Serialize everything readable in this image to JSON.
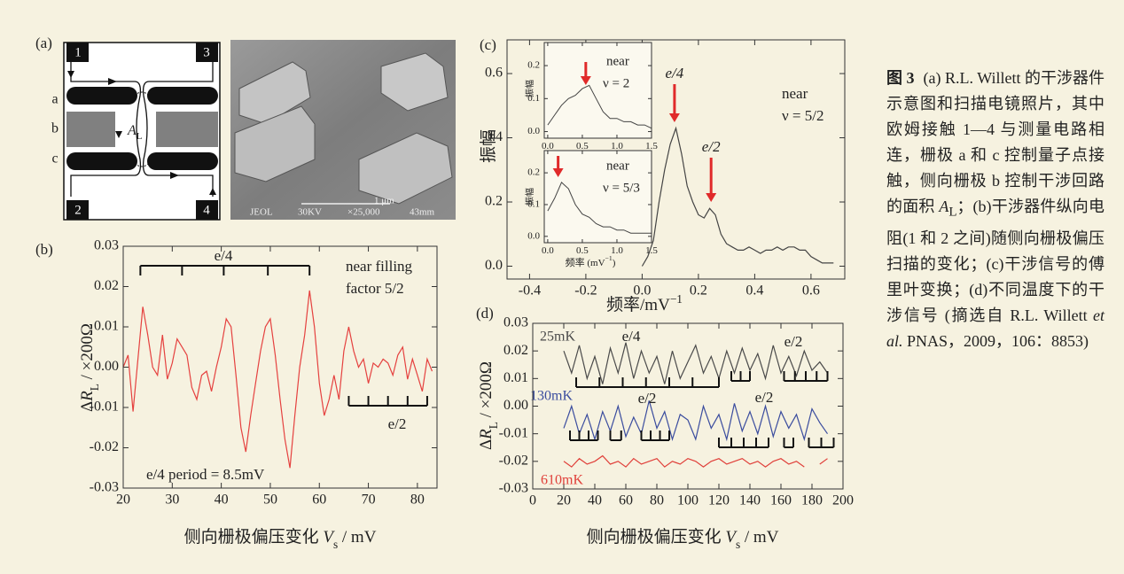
{
  "diagram": {
    "panel_label": "(a)",
    "terminals": [
      "1",
      "2",
      "3",
      "4"
    ],
    "gates": [
      "a",
      "b",
      "c"
    ],
    "area_label": {
      "A": "A",
      "sub": "L"
    },
    "photo_texts": [
      "JEOL",
      "30KV",
      "×25,000",
      "43mm",
      "1 μm"
    ]
  },
  "chart_data": [
    {
      "type": "line",
      "panel_label": "(b)",
      "x_label": [
        {
          "text": "侧向栅极偏压变化 "
        },
        {
          "text": "V",
          "style": "italic"
        },
        {
          "text": "s",
          "style": "sub"
        },
        {
          "text": " / mV"
        }
      ],
      "y_label": [
        {
          "text": "Δ"
        },
        {
          "text": "R",
          "style": "italic"
        },
        {
          "text": "L",
          "style": "sub"
        },
        {
          "text": " / ×200Ω"
        }
      ],
      "xlim": [
        20,
        84
      ],
      "xticks": [
        20,
        30,
        40,
        50,
        60,
        70,
        80
      ],
      "ylim": [
        -0.03,
        0.03
      ],
      "yticks": [
        -0.03,
        -0.02,
        -0.01,
        {
          "value": 0,
          "label": "0.00"
        },
        0.01,
        0.02,
        0.03
      ],
      "series": [
        {
          "color": "#e5413f",
          "x": [
            20,
            21,
            22,
            23,
            24,
            25,
            26,
            27,
            28,
            29,
            30,
            31,
            32,
            33,
            34,
            35,
            36,
            37,
            38,
            39,
            40,
            41,
            42,
            43,
            44,
            45,
            46,
            47,
            48,
            49,
            50,
            51,
            52,
            53,
            54,
            55,
            56,
            57,
            58,
            59,
            60,
            61,
            62,
            63,
            64,
            65,
            66,
            67,
            68,
            69,
            70,
            71,
            72,
            73,
            74,
            75,
            76,
            77,
            78,
            79,
            80,
            81,
            82,
            83
          ],
          "values": [
            0.0,
            0.003,
            -0.011,
            0.002,
            0.015,
            0.008,
            0.0,
            -0.002,
            0.008,
            -0.003,
            0.001,
            0.007,
            0.005,
            0.003,
            -0.005,
            -0.008,
            -0.002,
            -0.001,
            -0.006,
            0.0,
            0.005,
            0.012,
            0.01,
            -0.002,
            -0.015,
            -0.021,
            -0.012,
            -0.004,
            0.004,
            0.01,
            0.012,
            0.003,
            -0.008,
            -0.018,
            -0.025,
            -0.012,
            0.0,
            0.008,
            0.019,
            0.01,
            -0.004,
            -0.012,
            -0.008,
            -0.002,
            -0.008,
            0.004,
            0.01,
            0.004,
            0.0,
            0.002,
            -0.004,
            0.001,
            0.0,
            0.002,
            0.001,
            -0.002,
            0.003,
            0.005,
            -0.003,
            0.002,
            -0.002,
            -0.006,
            0.002,
            -0.001
          ]
        }
      ],
      "annotations": [
        "near filling",
        "factor 5/2",
        "e/4 period = 8.5mV",
        "e/4",
        "e/2"
      ],
      "brackets": [
        {
          "x": [
            23.5,
            32,
            40.5,
            49.5,
            58
          ]
        },
        {
          "x": [
            66,
            70,
            74,
            78,
            82
          ]
        }
      ]
    },
    {
      "type": "line",
      "panel_label": "(c)",
      "x_label": [
        {
          "text": "频率/mV"
        },
        {
          "text": "−1",
          "style": "sup"
        }
      ],
      "y_label": [
        {
          "text": "振幅"
        }
      ],
      "xlim": [
        -0.48,
        0.72
      ],
      "xticks": [
        -0.4,
        -0.2,
        {
          "value": 0,
          "label": "0.0"
        },
        0.2,
        0.4,
        0.6
      ],
      "ylim": [
        -0.04,
        0.705
      ],
      "yticks": [
        {
          "value": 0,
          "label": "0.0"
        },
        0.2,
        0.4,
        0.6
      ],
      "series": [
        {
          "color": "#444444",
          "x": [
            0.0,
            0.02,
            0.04,
            0.06,
            0.08,
            0.1,
            0.12,
            0.14,
            0.16,
            0.18,
            0.2,
            0.22,
            0.24,
            0.26,
            0.28,
            0.3,
            0.32,
            0.34,
            0.36,
            0.38,
            0.4,
            0.42,
            0.44,
            0.46,
            0.48,
            0.5,
            0.52,
            0.54,
            0.56,
            0.58,
            0.6,
            0.62,
            0.64,
            0.66,
            0.68
          ],
          "values": [
            0.0,
            0.03,
            0.08,
            0.2,
            0.3,
            0.38,
            0.43,
            0.35,
            0.25,
            0.2,
            0.16,
            0.15,
            0.18,
            0.16,
            0.1,
            0.07,
            0.06,
            0.05,
            0.05,
            0.06,
            0.05,
            0.04,
            0.05,
            0.05,
            0.06,
            0.05,
            0.06,
            0.06,
            0.05,
            0.05,
            0.03,
            0.02,
            0.01,
            0.01,
            0.01
          ]
        }
      ],
      "annotations": [
        "near",
        "ν = 5/2"
      ],
      "arrows": [
        {
          "label": "e/4",
          "x": 0.115
        },
        {
          "label": "e/2",
          "x": 0.245
        }
      ]
    },
    {
      "type": "line",
      "y_label": [
        {
          "text": "振幅"
        }
      ],
      "xlim": [
        -0.05,
        1.5
      ],
      "xticks": [
        {
          "value": 0,
          "label": "0.0"
        },
        0.5,
        {
          "value": 1,
          "label": "1.0"
        },
        1.5
      ],
      "ylim": [
        -0.02,
        0.27
      ],
      "yticks": [
        {
          "value": 0,
          "label": "0.0"
        },
        0.1,
        0.2
      ],
      "series": [
        {
          "color": "#444444",
          "x": [
            0.0,
            0.1,
            0.2,
            0.3,
            0.4,
            0.5,
            0.6,
            0.7,
            0.8,
            0.9,
            1.0,
            1.1,
            1.2,
            1.3,
            1.4,
            1.5
          ],
          "values": [
            0.02,
            0.05,
            0.08,
            0.1,
            0.11,
            0.13,
            0.14,
            0.1,
            0.06,
            0.04,
            0.04,
            0.03,
            0.03,
            0.02,
            0.02,
            0.01
          ]
        }
      ],
      "annotations": [
        "near",
        "ν = 2"
      ],
      "arrows": [
        {
          "x": 0.55
        }
      ]
    },
    {
      "type": "line",
      "x_label": [
        {
          "text": "频率 (mV"
        },
        {
          "text": "−1",
          "style": "sup"
        },
        {
          "text": ")"
        }
      ],
      "y_label": [
        {
          "text": "振幅"
        }
      ],
      "xlim": [
        -0.05,
        1.5
      ],
      "xticks": [
        {
          "value": 0,
          "label": "0.0"
        },
        0.5,
        {
          "value": 1,
          "label": "1.0"
        },
        1.5
      ],
      "ylim": [
        -0.02,
        0.27
      ],
      "yticks": [
        {
          "value": 0,
          "label": "0.0"
        },
        0.1,
        0.2
      ],
      "series": [
        {
          "color": "#444444",
          "x": [
            0.0,
            0.1,
            0.2,
            0.3,
            0.4,
            0.5,
            0.6,
            0.7,
            0.8,
            0.9,
            1.0,
            1.1,
            1.2,
            1.3,
            1.4,
            1.5
          ],
          "values": [
            0.08,
            0.12,
            0.17,
            0.15,
            0.1,
            0.07,
            0.06,
            0.04,
            0.03,
            0.03,
            0.02,
            0.02,
            0.01,
            0.01,
            0.01,
            0.01
          ]
        }
      ],
      "annotations": [
        "near",
        "ν = 5/3"
      ],
      "arrows": [
        {
          "x": 0.15
        }
      ]
    },
    {
      "type": "line",
      "panel_label": "(d)",
      "x_label": [
        {
          "text": "侧向栅极偏压变化 "
        },
        {
          "text": "V",
          "style": "italic"
        },
        {
          "text": "s",
          "style": "sub"
        },
        {
          "text": " / mV"
        }
      ],
      "y_label": [
        {
          "text": "Δ"
        },
        {
          "text": "R",
          "style": "italic"
        },
        {
          "text": "L",
          "style": "sub"
        },
        {
          "text": " / ×200Ω"
        }
      ],
      "xlim": [
        0,
        200
      ],
      "xticks": [
        0,
        20,
        40,
        60,
        80,
        100,
        120,
        140,
        160,
        180,
        200
      ],
      "ylim": [
        -0.03,
        0.03
      ],
      "yticks": [
        -0.03,
        -0.02,
        -0.01,
        {
          "value": 0,
          "label": "0.00"
        },
        0.01,
        0.02,
        0.03
      ],
      "series": [
        {
          "name": "25mK",
          "color": "#4a4a4a",
          "x": [
            20,
            25,
            30,
            35,
            40,
            45,
            50,
            55,
            60,
            65,
            70,
            75,
            80,
            85,
            90,
            95,
            100,
            105,
            110,
            115,
            120,
            125,
            130,
            135,
            140,
            145,
            150,
            155,
            160,
            165,
            170,
            175,
            180,
            185,
            190
          ],
          "values": [
            0.02,
            0.012,
            0.022,
            0.01,
            0.018,
            0.008,
            0.021,
            0.012,
            0.023,
            0.01,
            0.02,
            0.012,
            0.018,
            0.008,
            0.02,
            0.01,
            0.016,
            0.022,
            0.012,
            0.018,
            0.01,
            0.02,
            0.012,
            0.021,
            0.013,
            0.019,
            0.01,
            0.022,
            0.012,
            0.018,
            0.011,
            0.02,
            0.013,
            0.016,
            0.012
          ]
        },
        {
          "name": "130mK",
          "color": "#3a4c9e",
          "x": [
            20,
            25,
            30,
            35,
            40,
            45,
            50,
            55,
            60,
            65,
            70,
            75,
            80,
            85,
            90,
            95,
            100,
            105,
            110,
            115,
            120,
            125,
            130,
            135,
            140,
            145,
            150,
            155,
            160,
            165,
            170,
            175,
            180,
            185,
            190
          ],
          "values": [
            -0.008,
            0.0,
            -0.01,
            -0.003,
            -0.012,
            -0.002,
            -0.009,
            0.0,
            -0.011,
            -0.004,
            -0.01,
            0.002,
            -0.008,
            -0.002,
            -0.012,
            -0.003,
            -0.005,
            -0.012,
            0.0,
            -0.008,
            -0.003,
            -0.012,
            0.001,
            -0.009,
            -0.002,
            -0.01,
            0.0,
            -0.011,
            -0.002,
            -0.008,
            -0.003,
            -0.012,
            -0.001,
            -0.006,
            -0.01
          ]
        },
        {
          "name": "610mK",
          "color": "#e0403a",
          "x": [
            20,
            25,
            30,
            35,
            40,
            45,
            50,
            55,
            60,
            65,
            70,
            75,
            80,
            85,
            90,
            95,
            100,
            105,
            110,
            115,
            120,
            125,
            130,
            135,
            140,
            145,
            150,
            155,
            160,
            165,
            170,
            175,
            180,
            185,
            190
          ],
          "values": [
            -0.02,
            -0.022,
            -0.019,
            -0.021,
            -0.02,
            -0.018,
            -0.021,
            -0.02,
            -0.022,
            -0.019,
            -0.021,
            -0.02,
            -0.019,
            -0.022,
            -0.02,
            -0.021,
            -0.019,
            -0.02,
            -0.022,
            -0.02,
            -0.019,
            -0.021,
            -0.02,
            -0.019,
            -0.021,
            -0.02,
            -0.022,
            -0.02,
            -0.019,
            -0.021,
            -0.02,
            -0.022,
            null,
            -0.021,
            -0.019
          ]
        }
      ],
      "annotations": [
        "e/4",
        "e/2",
        "e/2",
        "e/2"
      ],
      "brackets": [
        {
          "x": [
            28,
            43,
            58,
            73,
            88,
            103,
            120
          ]
        },
        {
          "x": [
            128,
            134,
            140
          ]
        },
        {
          "x": [
            162,
            169,
            176,
            183,
            190
          ]
        },
        {
          "x": [
            24,
            30,
            36,
            42
          ]
        },
        {
          "x": [
            50,
            57
          ]
        },
        {
          "x": [
            70,
            76,
            82,
            88
          ]
        },
        {
          "x": [
            120,
            128,
            136,
            144,
            152
          ]
        },
        {
          "x": [
            162,
            168
          ]
        },
        {
          "x": [
            178,
            186,
            194
          ]
        }
      ]
    }
  ],
  "caption": {
    "label": "图 3",
    "text_1": "(a) R.L. Willett 的干涉器件示意图和扫描电镜照片，其中欧姆接触 1—4 与测量电路相连，栅极 a 和 c 控制量子点接触，侧向栅极 b 控制干涉回路的面积 ",
    "A": "A",
    "L": "L",
    "text_2": "；(b)干涉器件纵向电阻(1 和 2 之间)随侧向栅极偏压扫描的变化；(c)干涉信号的傅里叶变换；(d)不同温度下的干涉信号 (摘选自 R.L. Willett ",
    "et_al": "et al.",
    "text_3": " PNAS，2009，106：8853)"
  }
}
